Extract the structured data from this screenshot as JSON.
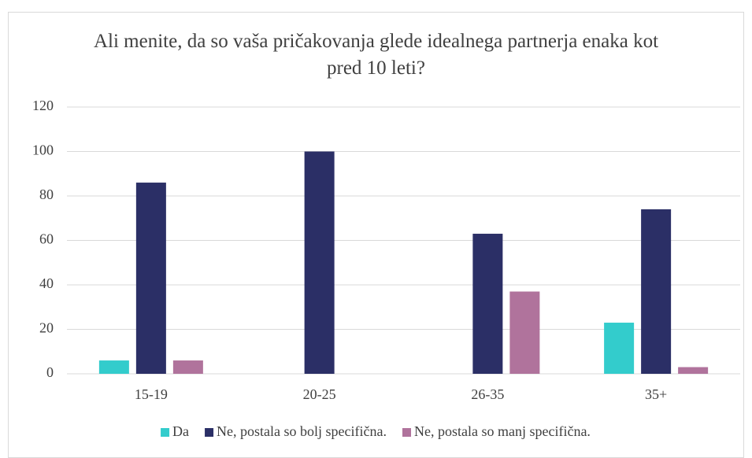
{
  "chart_data": {
    "type": "bar",
    "title": "Ali menite, da so vaša pričakovanja glede idealnega partnerja enaka kot pred 10 leti?",
    "categories": [
      "15-19",
      "20-25",
      "26-35",
      "35+"
    ],
    "series": [
      {
        "name": "Da",
        "color": "#33cccc",
        "values": [
          6,
          0,
          0,
          23
        ]
      },
      {
        "name": "Ne, postala so bolj specifična.",
        "color": "#2b2f66",
        "values": [
          86,
          100,
          63,
          74
        ]
      },
      {
        "name": "Ne, postala so manj specifična.",
        "color": "#b0739c",
        "values": [
          6,
          0,
          37,
          3
        ]
      }
    ],
    "ylim": [
      0,
      120
    ],
    "yticks": [
      0,
      20,
      40,
      60,
      80,
      100,
      120
    ],
    "grid": true,
    "legend": "bottom"
  }
}
